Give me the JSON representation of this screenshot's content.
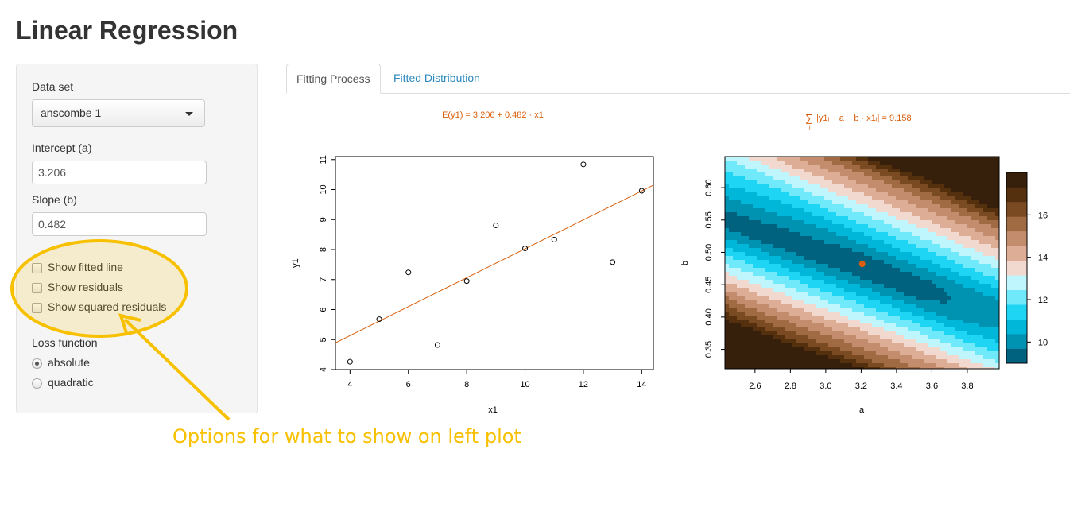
{
  "app": {
    "title": "Linear Regression"
  },
  "sidebar": {
    "dataset_label": "Data set",
    "dataset_value": "anscombe 1",
    "intercept_label": "Intercept (a)",
    "intercept_value": "3.206",
    "slope_label": "Slope (b)",
    "slope_value": "0.482",
    "checkboxes": [
      {
        "label": "Show fitted line",
        "checked": false
      },
      {
        "label": "Show residuals",
        "checked": false
      },
      {
        "label": "Show squared residuals",
        "checked": false
      }
    ],
    "loss_label": "Loss function",
    "loss_options": [
      {
        "label": "absolute",
        "selected": true
      },
      {
        "label": "quadratic",
        "selected": false
      }
    ]
  },
  "tabs": [
    {
      "label": "Fitting Process",
      "active": true
    },
    {
      "label": "Fitted Distribution",
      "active": false
    }
  ],
  "annotation": {
    "text": "Options for what to show on left plot",
    "color": "#f7c000"
  },
  "colors": {
    "accent_orange": "#d95f0e",
    "link_blue": "#2a88bd",
    "highlight_yellow": "#f7c000"
  },
  "chart_data": [
    {
      "type": "scatter",
      "title": "E(y1) = 3.206 + 0.482 · x1",
      "xlabel": "x1",
      "ylabel": "y1",
      "xlim": [
        3.5,
        14.4
      ],
      "ylim": [
        4,
        11.1
      ],
      "xticks": [
        4,
        6,
        8,
        10,
        12,
        14
      ],
      "yticks": [
        4,
        5,
        6,
        7,
        8,
        9,
        10,
        11
      ],
      "points": [
        {
          "x": 10,
          "y": 8.04
        },
        {
          "x": 8,
          "y": 6.95
        },
        {
          "x": 13,
          "y": 7.58
        },
        {
          "x": 9,
          "y": 8.81
        },
        {
          "x": 11,
          "y": 8.33
        },
        {
          "x": 14,
          "y": 9.96
        },
        {
          "x": 6,
          "y": 7.24
        },
        {
          "x": 4,
          "y": 4.26
        },
        {
          "x": 12,
          "y": 10.84
        },
        {
          "x": 7,
          "y": 4.82
        },
        {
          "x": 5,
          "y": 5.68
        }
      ],
      "line": {
        "intercept": 3.206,
        "slope": 0.482
      }
    },
    {
      "type": "heatmap",
      "title": "∑ |y1ᵢ − a − b · x1ᵢ| = 9.158",
      "title_sum_symbol": "∑",
      "title_subscript": "i",
      "title_body": "|y1ᵢ − a − b · x1ᵢ| = 9.158",
      "xlabel": "a",
      "ylabel": "b",
      "xlim": [
        2.43,
        3.98
      ],
      "ylim": [
        0.32,
        0.648
      ],
      "xticks": [
        "2.6",
        "2.8",
        "3.0",
        "3.2",
        "3.4",
        "3.6",
        "3.8"
      ],
      "yticks": [
        "0.35",
        "0.40",
        "0.45",
        "0.50",
        "0.55",
        "0.60"
      ],
      "marker": {
        "a": 3.206,
        "b": 0.482
      },
      "legend_ticks": [
        "10",
        "12",
        "14",
        "16"
      ],
      "legend_range": [
        9,
        18
      ],
      "palette": [
        "#00627f",
        "#0092b1",
        "#00b7d9",
        "#1ed5f3",
        "#70e9fb",
        "#bff6fd",
        "#f1d9cf",
        "#ddae95",
        "#c38d6d",
        "#a06a43",
        "#7a4a22",
        "#55300f",
        "#36200b"
      ]
    }
  ]
}
